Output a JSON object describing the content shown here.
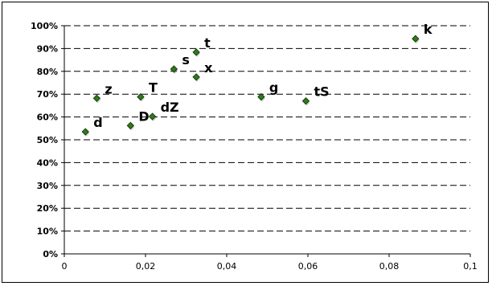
{
  "chart_data": {
    "type": "scatter",
    "title": "",
    "xlabel": "",
    "ylabel": "",
    "xlim": [
      0,
      0.1
    ],
    "ylim": [
      0,
      1
    ],
    "x_ticks": [
      {
        "value": 0,
        "label": "0"
      },
      {
        "value": 0.02,
        "label": "0,02"
      },
      {
        "value": 0.04,
        "label": "0,04"
      },
      {
        "value": 0.06,
        "label": "0,06"
      },
      {
        "value": 0.08,
        "label": "0,08"
      },
      {
        "value": 0.1,
        "label": "0,1"
      }
    ],
    "y_ticks": [
      {
        "value": 0,
        "label": "0%"
      },
      {
        "value": 0.1,
        "label": "10%"
      },
      {
        "value": 0.2,
        "label": "20%"
      },
      {
        "value": 0.3,
        "label": "30%"
      },
      {
        "value": 0.4,
        "label": "40%"
      },
      {
        "value": 0.5,
        "label": "50%"
      },
      {
        "value": 0.6,
        "label": "60%"
      },
      {
        "value": 0.7,
        "label": "70%"
      },
      {
        "value": 0.8,
        "label": "80%"
      },
      {
        "value": 0.9,
        "label": "90%"
      },
      {
        "value": 1.0,
        "label": "100%"
      }
    ],
    "grid": "horizontal-dashed",
    "legend": "none",
    "marker_color": "#2e7d1a",
    "points": [
      {
        "label": "d",
        "x": 0.0052,
        "y": 0.535
      },
      {
        "label": "z",
        "x": 0.008,
        "y": 0.682
      },
      {
        "label": "D",
        "x": 0.0163,
        "y": 0.562
      },
      {
        "label": "T",
        "x": 0.0188,
        "y": 0.688
      },
      {
        "label": "dZ",
        "x": 0.0217,
        "y": 0.602
      },
      {
        "label": "s",
        "x": 0.027,
        "y": 0.81
      },
      {
        "label": "t",
        "x": 0.0325,
        "y": 0.884
      },
      {
        "label": "x",
        "x": 0.0325,
        "y": 0.775
      },
      {
        "label": "g",
        "x": 0.0485,
        "y": 0.688
      },
      {
        "label": "tS",
        "x": 0.0595,
        "y": 0.67
      },
      {
        "label": "k",
        "x": 0.0865,
        "y": 0.943
      }
    ]
  }
}
